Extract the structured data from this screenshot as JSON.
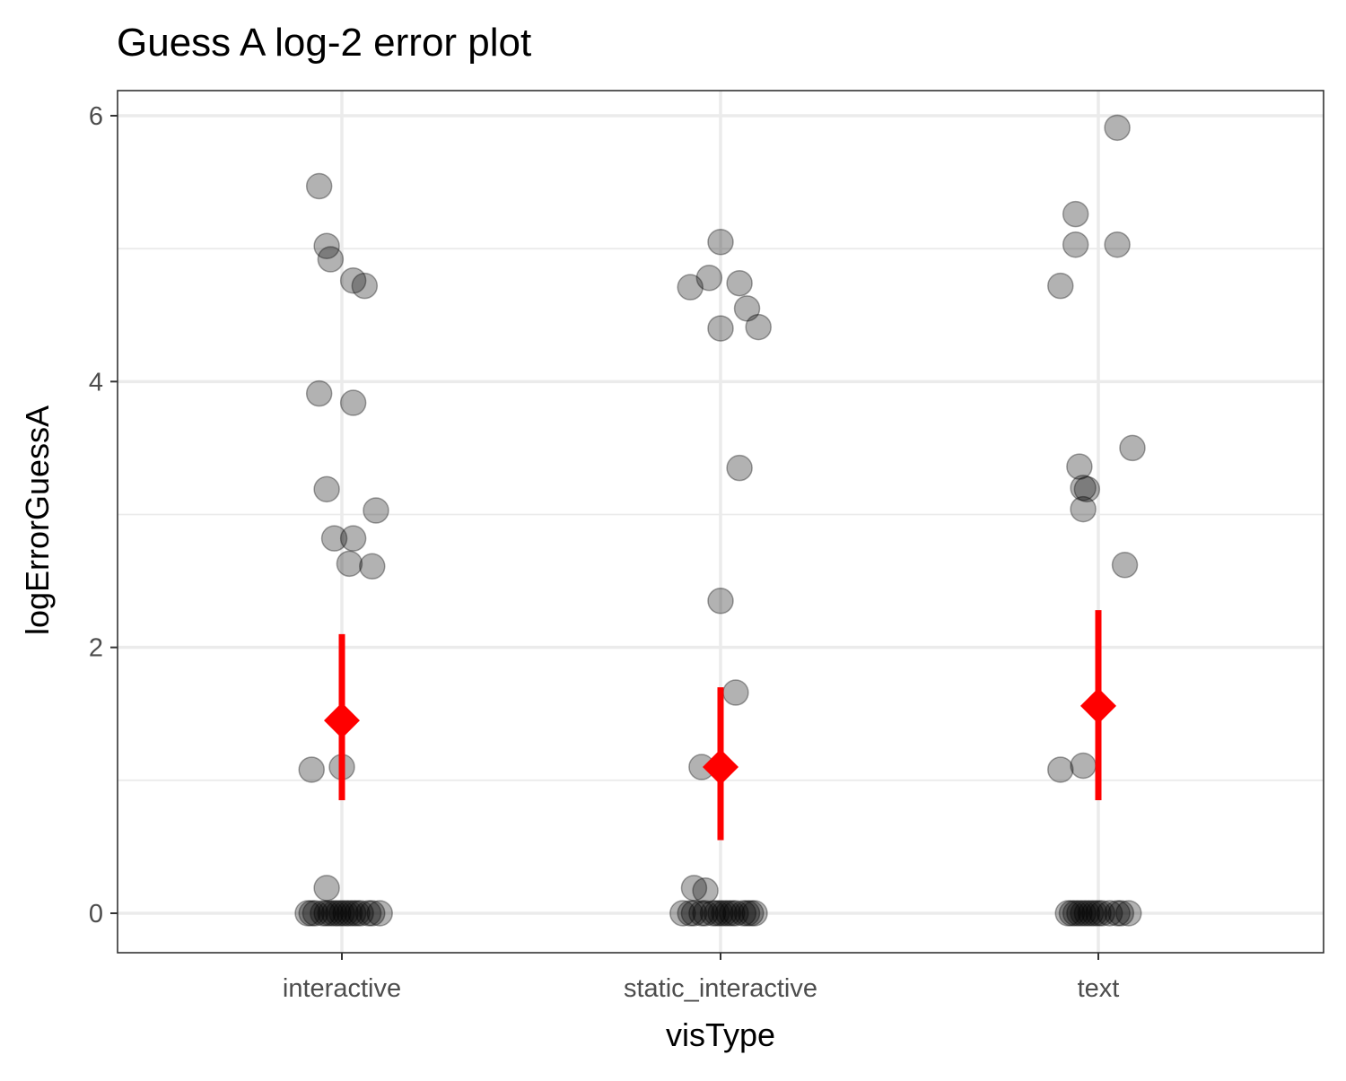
{
  "chart_data": {
    "type": "scatter",
    "title": "Guess A log-2 error plot",
    "xlabel": "visType",
    "ylabel": "logErrorGuessA",
    "categories": [
      "interactive",
      "static_interactive",
      "text"
    ],
    "yticks": [
      0,
      2,
      4,
      6
    ],
    "ylim": [
      -0.3,
      6.2
    ],
    "grid": true,
    "legend": "none",
    "colors": {
      "points": "#000000",
      "summary": "#ff0000",
      "grid": "#ebebeb",
      "panel_border": "#333333"
    },
    "series": [
      {
        "category": "interactive",
        "points": [
          {
            "x": -0.06,
            "y": 5.47
          },
          {
            "x": -0.04,
            "y": 5.02
          },
          {
            "x": -0.03,
            "y": 4.92
          },
          {
            "x": 0.03,
            "y": 4.76
          },
          {
            "x": 0.06,
            "y": 4.72
          },
          {
            "x": -0.06,
            "y": 3.91
          },
          {
            "x": 0.03,
            "y": 3.84
          },
          {
            "x": -0.04,
            "y": 3.19
          },
          {
            "x": 0.09,
            "y": 3.03
          },
          {
            "x": -0.02,
            "y": 2.82
          },
          {
            "x": 0.03,
            "y": 2.82
          },
          {
            "x": 0.02,
            "y": 2.63
          },
          {
            "x": 0.08,
            "y": 2.61
          },
          {
            "x": -0.08,
            "y": 1.08
          },
          {
            "x": 0.0,
            "y": 1.1
          },
          {
            "x": -0.04,
            "y": 0.19
          },
          {
            "x": -0.09,
            "y": 0
          },
          {
            "x": -0.08,
            "y": 0
          },
          {
            "x": -0.07,
            "y": 0
          },
          {
            "x": -0.05,
            "y": 0
          },
          {
            "x": -0.04,
            "y": 0
          },
          {
            "x": -0.03,
            "y": 0
          },
          {
            "x": -0.02,
            "y": 0
          },
          {
            "x": -0.01,
            "y": 0
          },
          {
            "x": 0.0,
            "y": 0
          },
          {
            "x": 0.01,
            "y": 0
          },
          {
            "x": 0.02,
            "y": 0
          },
          {
            "x": 0.03,
            "y": 0
          },
          {
            "x": 0.04,
            "y": 0
          },
          {
            "x": 0.05,
            "y": 0
          },
          {
            "x": 0.07,
            "y": 0
          },
          {
            "x": 0.08,
            "y": 0
          },
          {
            "x": 0.1,
            "y": 0
          }
        ],
        "mean": 1.45,
        "ci": [
          0.85,
          2.1
        ]
      },
      {
        "category": "static_interactive",
        "points": [
          {
            "x": 0.0,
            "y": 5.05
          },
          {
            "x": -0.03,
            "y": 4.78
          },
          {
            "x": -0.08,
            "y": 4.71
          },
          {
            "x": 0.05,
            "y": 4.74
          },
          {
            "x": 0.07,
            "y": 4.55
          },
          {
            "x": 0.0,
            "y": 4.4
          },
          {
            "x": 0.1,
            "y": 4.41
          },
          {
            "x": 0.05,
            "y": 3.35
          },
          {
            "x": 0.0,
            "y": 2.35
          },
          {
            "x": 0.04,
            "y": 1.66
          },
          {
            "x": -0.05,
            "y": 1.1
          },
          {
            "x": -0.07,
            "y": 0.19
          },
          {
            "x": -0.04,
            "y": 0.17
          },
          {
            "x": -0.1,
            "y": 0
          },
          {
            "x": -0.08,
            "y": 0
          },
          {
            "x": -0.07,
            "y": 0
          },
          {
            "x": -0.05,
            "y": 0
          },
          {
            "x": -0.04,
            "y": 0
          },
          {
            "x": -0.02,
            "y": 0
          },
          {
            "x": -0.01,
            "y": 0
          },
          {
            "x": 0.0,
            "y": 0
          },
          {
            "x": 0.01,
            "y": 0
          },
          {
            "x": 0.02,
            "y": 0
          },
          {
            "x": 0.03,
            "y": 0
          },
          {
            "x": 0.04,
            "y": 0
          },
          {
            "x": 0.06,
            "y": 0
          },
          {
            "x": 0.07,
            "y": 0
          },
          {
            "x": 0.08,
            "y": 0
          },
          {
            "x": 0.09,
            "y": 0
          }
        ],
        "mean": 1.1,
        "ci": [
          0.55,
          1.7
        ]
      },
      {
        "category": "text",
        "points": [
          {
            "x": 0.05,
            "y": 5.91
          },
          {
            "x": -0.06,
            "y": 5.26
          },
          {
            "x": -0.06,
            "y": 5.03
          },
          {
            "x": 0.05,
            "y": 5.03
          },
          {
            "x": -0.1,
            "y": 4.72
          },
          {
            "x": 0.09,
            "y": 3.5
          },
          {
            "x": -0.05,
            "y": 3.36
          },
          {
            "x": -0.04,
            "y": 3.2
          },
          {
            "x": -0.04,
            "y": 3.04
          },
          {
            "x": -0.03,
            "y": 3.19
          },
          {
            "x": 0.07,
            "y": 2.62
          },
          {
            "x": -0.1,
            "y": 1.08
          },
          {
            "x": -0.04,
            "y": 1.11
          },
          {
            "x": -0.08,
            "y": 0
          },
          {
            "x": -0.07,
            "y": 0
          },
          {
            "x": -0.06,
            "y": 0
          },
          {
            "x": -0.05,
            "y": 0
          },
          {
            "x": -0.04,
            "y": 0
          },
          {
            "x": -0.03,
            "y": 0
          },
          {
            "x": -0.02,
            "y": 0
          },
          {
            "x": -0.01,
            "y": 0
          },
          {
            "x": 0.0,
            "y": 0
          },
          {
            "x": 0.01,
            "y": 0
          },
          {
            "x": 0.03,
            "y": 0
          },
          {
            "x": 0.05,
            "y": 0
          },
          {
            "x": 0.06,
            "y": 0
          },
          {
            "x": 0.08,
            "y": 0
          }
        ],
        "mean": 1.56,
        "ci": [
          0.85,
          2.28
        ]
      }
    ]
  }
}
